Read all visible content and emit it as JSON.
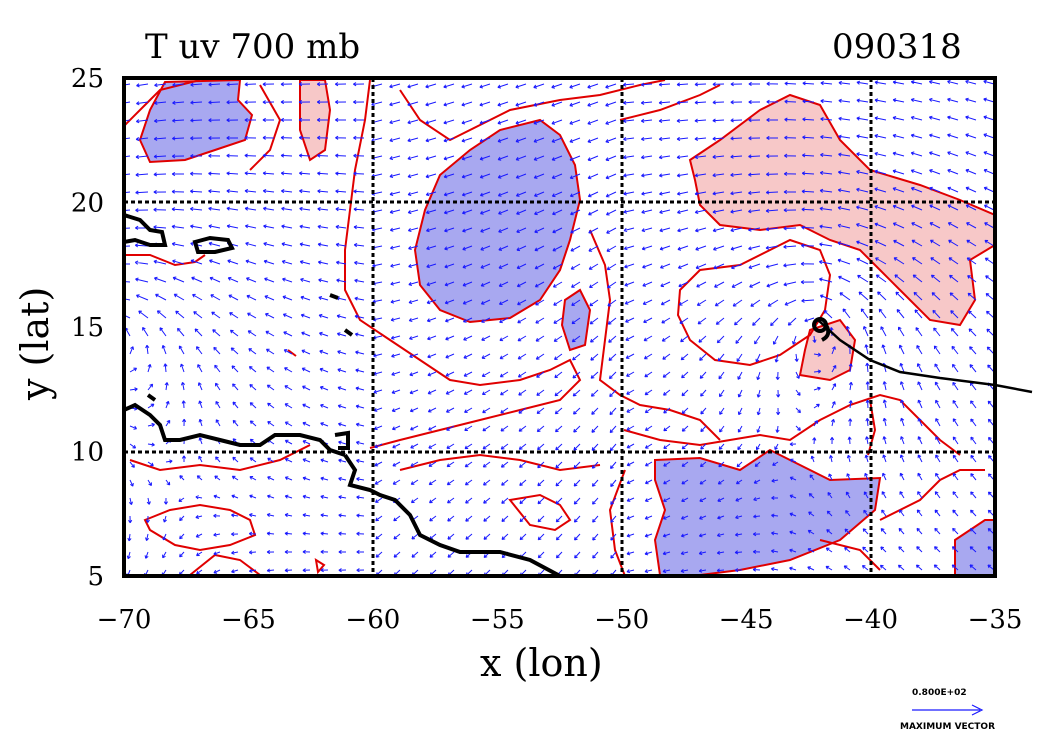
{
  "title": "T uv 700 mb",
  "date_code": "090318",
  "x_axis": {
    "label": "x (lon)",
    "ticks": [
      "-70",
      "-65",
      "-60",
      "-55",
      "-50",
      "-45",
      "-40",
      "-35"
    ],
    "range": [
      -70,
      -35
    ]
  },
  "y_axis": {
    "label": "y (lat)",
    "ticks": [
      "25",
      "20",
      "15",
      "10",
      "5"
    ],
    "range": [
      5,
      25
    ]
  },
  "vector_legend": {
    "value": "0.800E+02",
    "label": "MAXIMUM VECTOR"
  },
  "colors": {
    "vector": "#1a1aff",
    "contour": "#e00000",
    "cold_fill": "#a8a8f0",
    "warm_fill": "#f7c8c8",
    "frame": "#000000",
    "track": "#000000"
  },
  "storm_symbol": "tropical-storm-icon"
}
